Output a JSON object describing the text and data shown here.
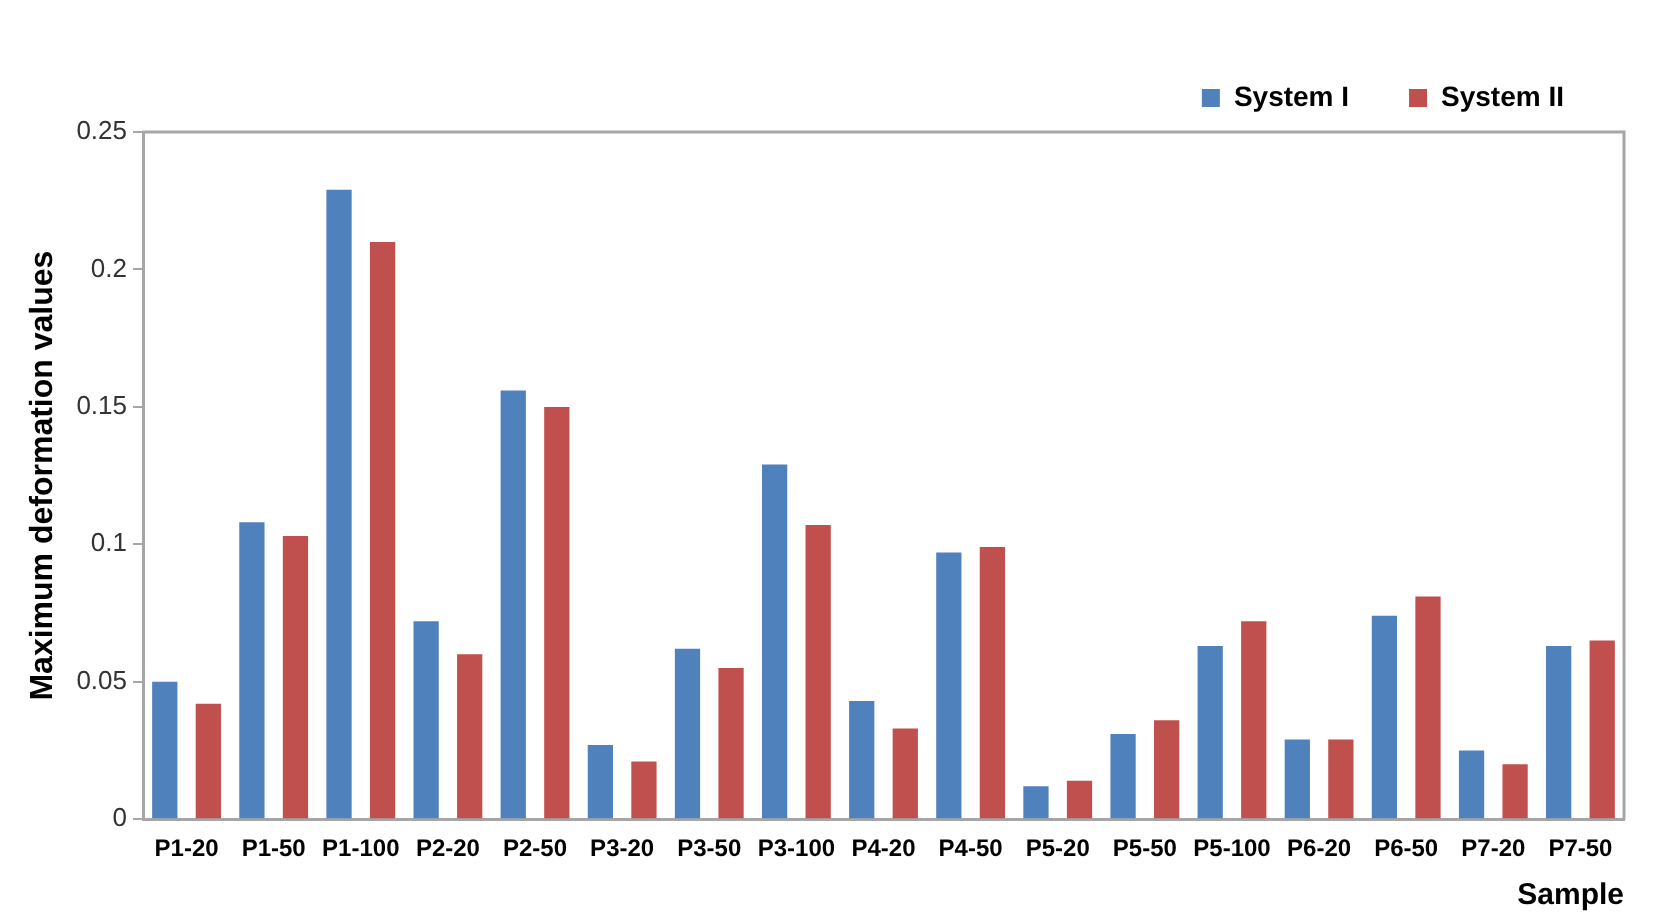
{
  "chart_data": {
    "type": "bar",
    "xlabel": "Sample",
    "ylabel": "Maximum deformation values",
    "categories": [
      "P1-20",
      "P1-50",
      "P1-100",
      "P2-20",
      "P2-50",
      "P3-20",
      "P3-50",
      "P3-100",
      "P4-20",
      "P4-50",
      "P5-20",
      "P5-50",
      "P5-100",
      "P6-20",
      "P6-50",
      "P7-20",
      "P7-50"
    ],
    "series": [
      {
        "name": "System I",
        "color": "#4f81bd",
        "values": [
          0.05,
          0.108,
          0.229,
          0.072,
          0.156,
          0.027,
          0.062,
          0.129,
          0.043,
          0.097,
          0.012,
          0.031,
          0.063,
          0.029,
          0.074,
          0.025,
          0.063
        ]
      },
      {
        "name": "System II",
        "color": "#c0504d",
        "values": [
          0.042,
          0.103,
          0.21,
          0.06,
          0.15,
          0.021,
          0.055,
          0.107,
          0.033,
          0.099,
          0.014,
          0.036,
          0.072,
          0.029,
          0.081,
          0.02,
          0.065
        ]
      }
    ],
    "ylim": [
      0,
      0.25
    ],
    "yticks": [
      0,
      0.05,
      0.1,
      0.15,
      0.2,
      0.25
    ],
    "grid": false,
    "legend": "top right"
  }
}
